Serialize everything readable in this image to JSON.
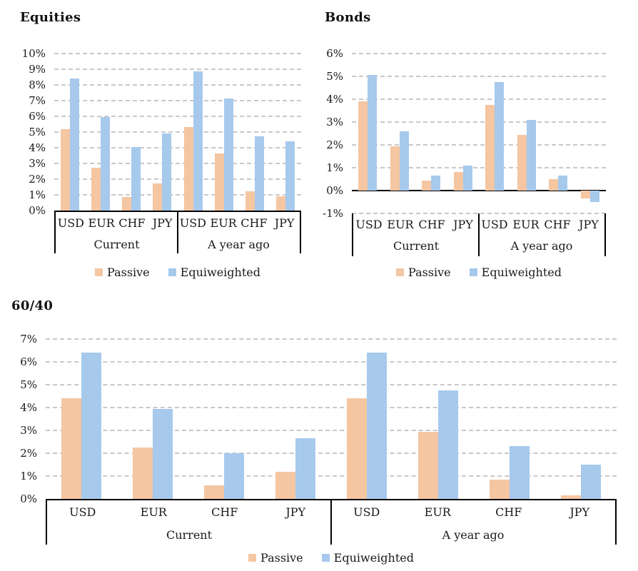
{
  "page": {
    "background": "#ffffff"
  },
  "style_colors": {
    "passive": "#F4C6A2",
    "equiweighted": "#A7C9EC",
    "gridline": "#C9C9C9",
    "axis": "#000000",
    "text": "#111111"
  },
  "legend": {
    "items": [
      "Passive",
      "Equiweighted"
    ],
    "position": "bottom-center"
  },
  "chart_data": [
    {
      "type": "bar",
      "title": "Equities",
      "groups": [
        "Current",
        "A year ago"
      ],
      "categories": [
        "USD",
        "EUR",
        "CHF",
        "JPY"
      ],
      "ylim": [
        0,
        10
      ],
      "ytick_step": 1,
      "ytick_suffix": "%",
      "grid": "dashed-horizontal",
      "series": [
        {
          "name": "Passive",
          "color": "#F4C6A2",
          "values": [
            [
              5.2,
              2.75,
              0.85,
              1.75
            ],
            [
              5.3,
              3.65,
              1.25,
              0.9
            ]
          ]
        },
        {
          "name": "Equiweighted",
          "color": "#A7C9EC",
          "values": [
            [
              8.4,
              5.95,
              4.05,
              4.9
            ],
            [
              8.85,
              7.15,
              4.75,
              4.4
            ]
          ]
        }
      ]
    },
    {
      "type": "bar",
      "title": "Bonds",
      "groups": [
        "Current",
        "A year ago"
      ],
      "categories": [
        "USD",
        "EUR",
        "CHF",
        "JPY"
      ],
      "ylim": [
        -1,
        6
      ],
      "ytick_step": 1,
      "ytick_suffix": "%",
      "grid": "dashed-horizontal",
      "series": [
        {
          "name": "Passive",
          "color": "#F4C6A2",
          "values": [
            [
              3.9,
              1.95,
              0.45,
              0.8
            ],
            [
              3.75,
              2.45,
              0.5,
              -0.35
            ]
          ]
        },
        {
          "name": "Equiweighted",
          "color": "#A7C9EC",
          "values": [
            [
              5.05,
              2.6,
              0.65,
              1.1
            ],
            [
              4.75,
              3.1,
              0.65,
              -0.5
            ]
          ]
        }
      ]
    },
    {
      "type": "bar",
      "title": "60/40",
      "groups": [
        "Current",
        "A year ago"
      ],
      "categories": [
        "USD",
        "EUR",
        "CHF",
        "JPY"
      ],
      "ylim": [
        0,
        7
      ],
      "ytick_step": 1,
      "ytick_suffix": "%",
      "grid": "dashed-horizontal",
      "series": [
        {
          "name": "Passive",
          "color": "#F4C6A2",
          "values": [
            [
              4.4,
              2.25,
              0.6,
              1.2
            ],
            [
              4.4,
              2.95,
              0.85,
              0.15
            ]
          ]
        },
        {
          "name": "Equiweighted",
          "color": "#A7C9EC",
          "values": [
            [
              6.4,
              3.95,
              2.0,
              2.65
            ],
            [
              6.4,
              4.75,
              2.3,
              1.5
            ]
          ]
        }
      ]
    }
  ]
}
